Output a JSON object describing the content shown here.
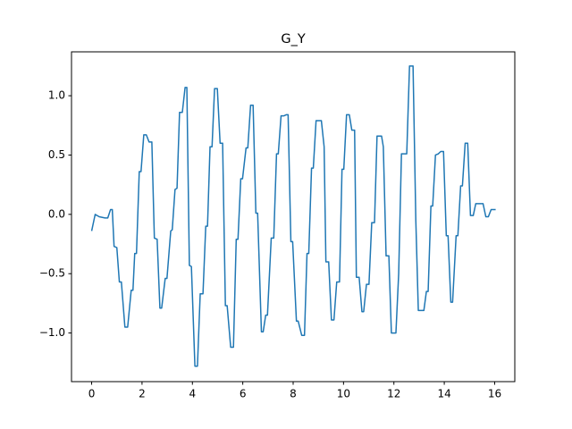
{
  "chart_data": {
    "type": "line",
    "title": "G_Y",
    "x": [
      0,
      0.14,
      0.3,
      0.53,
      0.64,
      0.75,
      0.82,
      0.89,
      1.0,
      1.1,
      1.18,
      1.32,
      1.43,
      1.57,
      1.64,
      1.71,
      1.78,
      1.89,
      1.96,
      2.07,
      2.17,
      2.28,
      2.39,
      2.49,
      2.6,
      2.71,
      2.78,
      2.92,
      2.99,
      3.14,
      3.2,
      3.31,
      3.39,
      3.49,
      3.6,
      3.71,
      3.78,
      3.88,
      3.96,
      4.1,
      4.2,
      4.31,
      4.42,
      4.53,
      4.6,
      4.7,
      4.78,
      4.88,
      4.99,
      5.1,
      5.2,
      5.31,
      5.38,
      5.52,
      5.63,
      5.74,
      5.81,
      5.92,
      5.99,
      6.13,
      6.2,
      6.31,
      6.41,
      6.52,
      6.59,
      6.74,
      6.81,
      6.91,
      6.98,
      7.13,
      7.23,
      7.34,
      7.41,
      7.52,
      7.63,
      7.73,
      7.8,
      7.91,
      7.98,
      8.13,
      8.2,
      8.34,
      8.45,
      8.55,
      8.62,
      8.73,
      8.8,
      8.91,
      9.12,
      9.23,
      9.3,
      9.41,
      9.52,
      9.62,
      9.73,
      9.84,
      9.94,
      10.01,
      10.12,
      10.23,
      10.33,
      10.44,
      10.51,
      10.62,
      10.73,
      10.8,
      10.91,
      11.01,
      11.12,
      11.23,
      11.33,
      11.51,
      11.58,
      11.69,
      11.8,
      11.9,
      12.08,
      12.19,
      12.3,
      12.51,
      12.62,
      12.76,
      12.87,
      12.97,
      13.19,
      13.29,
      13.36,
      13.47,
      13.54,
      13.65,
      13.76,
      13.86,
      13.97,
      14.08,
      14.15,
      14.26,
      14.33,
      14.47,
      14.54,
      14.65,
      14.72,
      14.83,
      14.93,
      15.04,
      15.15,
      15.25,
      15.54,
      15.65,
      15.75,
      15.86,
      16.04
    ],
    "series": [
      {
        "color": "#1f77b4",
        "values": [
          -0.14,
          0.0,
          -0.02,
          -0.03,
          -0.03,
          0.04,
          0.04,
          -0.27,
          -0.28,
          -0.57,
          -0.57,
          -0.95,
          -0.95,
          -0.64,
          -0.64,
          -0.33,
          -0.33,
          0.36,
          0.36,
          0.67,
          0.67,
          0.61,
          0.61,
          -0.2,
          -0.21,
          -0.79,
          -0.79,
          -0.54,
          -0.54,
          -0.14,
          -0.13,
          0.21,
          0.22,
          0.86,
          0.86,
          1.07,
          1.07,
          -0.43,
          -0.44,
          -1.28,
          -1.28,
          -0.67,
          -0.67,
          -0.1,
          -0.1,
          0.57,
          0.57,
          1.06,
          1.06,
          0.6,
          0.6,
          -0.77,
          -0.77,
          -1.12,
          -1.12,
          -0.21,
          -0.21,
          0.3,
          0.3,
          0.56,
          0.56,
          0.92,
          0.92,
          0.01,
          0.01,
          -0.99,
          -0.99,
          -0.85,
          -0.85,
          -0.2,
          -0.2,
          0.51,
          0.51,
          0.83,
          0.83,
          0.84,
          0.84,
          -0.23,
          -0.23,
          -0.9,
          -0.9,
          -1.02,
          -1.02,
          -0.33,
          -0.33,
          0.39,
          0.39,
          0.79,
          0.79,
          0.57,
          -0.4,
          -0.4,
          -0.89,
          -0.89,
          -0.57,
          -0.57,
          0.38,
          0.38,
          0.84,
          0.84,
          0.71,
          0.71,
          -0.53,
          -0.53,
          -0.82,
          -0.82,
          -0.59,
          -0.59,
          -0.07,
          -0.07,
          0.66,
          0.66,
          0.57,
          -0.35,
          -0.35,
          -1.0,
          -1.0,
          -0.5,
          0.51,
          0.51,
          1.25,
          1.25,
          -0.05,
          -0.81,
          -0.81,
          -0.65,
          -0.65,
          0.07,
          0.07,
          0.5,
          0.51,
          0.53,
          0.53,
          -0.18,
          -0.18,
          -0.74,
          -0.74,
          -0.18,
          -0.18,
          0.24,
          0.24,
          0.6,
          0.6,
          -0.01,
          -0.01,
          0.09,
          0.09,
          -0.02,
          -0.02,
          0.04,
          0.04
        ]
      }
    ],
    "xlim": [
      -0.8,
      16.8
    ],
    "xticks": [
      0,
      2,
      4,
      6,
      8,
      10,
      12,
      14,
      16
    ],
    "ylim": [
      -1.41,
      1.37
    ],
    "yticks": [
      {
        "value": -1,
        "label": "−1.0"
      },
      {
        "value": -0.5,
        "label": "−0.5"
      },
      {
        "value": 0,
        "label": "0.0"
      },
      0.5,
      {
        "value": 1,
        "label": "1.0"
      }
    ]
  }
}
